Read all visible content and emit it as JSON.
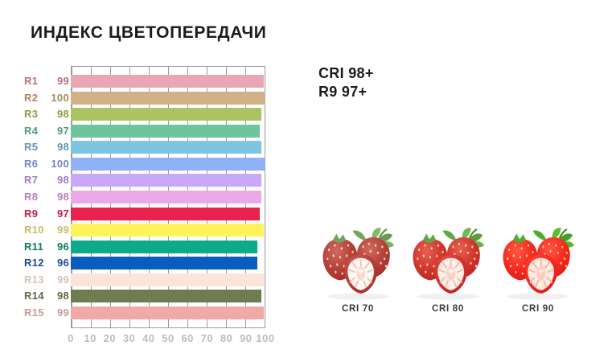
{
  "title": "ИНДЕКС ЦВЕТОПЕРЕДАЧИ",
  "summary": {
    "cri": "CRI 98+",
    "r9": "R9 97+"
  },
  "colors": {
    "grid": "#9b9b9b",
    "axis_ticks": "#bcbcbc",
    "title_ink": "#1b1b1b"
  },
  "chart_data": {
    "type": "bar",
    "orientation": "horizontal",
    "xlim": [
      0,
      100
    ],
    "x_ticks": [
      0,
      10,
      20,
      30,
      40,
      50,
      60,
      70,
      80,
      90,
      100
    ],
    "grid": true,
    "rows": [
      {
        "name": "R1",
        "value": 99,
        "bar_color": "#eba6b3",
        "label_color": "#b4717f"
      },
      {
        "name": "R2",
        "value": 100,
        "bar_color": "#d2b186",
        "label_color": "#a8885c"
      },
      {
        "name": "R3",
        "value": 98,
        "bar_color": "#abc362",
        "label_color": "#8e9c43"
      },
      {
        "name": "R4",
        "value": 97,
        "bar_color": "#6fc49e",
        "label_color": "#4f9b7c"
      },
      {
        "name": "R5",
        "value": 98,
        "bar_color": "#7ec5e1",
        "label_color": "#6295ae"
      },
      {
        "name": "R6",
        "value": 100,
        "bar_color": "#90b1f8",
        "label_color": "#7284c6"
      },
      {
        "name": "R7",
        "value": 98,
        "bar_color": "#c9a8f5",
        "label_color": "#9d7cca"
      },
      {
        "name": "R8",
        "value": 98,
        "bar_color": "#eda8e8",
        "label_color": "#c07dbb"
      },
      {
        "name": "R9",
        "value": 97,
        "bar_color": "#e9214e",
        "label_color": "#c22045"
      },
      {
        "name": "R10",
        "value": 99,
        "bar_color": "#fdf35b",
        "label_color": "#c9bd62"
      },
      {
        "name": "R11",
        "value": 96,
        "bar_color": "#0bab88",
        "label_color": "#117a5e"
      },
      {
        "name": "R12",
        "value": 96,
        "bar_color": "#0a5dbf",
        "label_color": "#1c4b9b"
      },
      {
        "name": "R13",
        "value": 99,
        "bar_color": "#fce5d8",
        "label_color": "#d5c3b8"
      },
      {
        "name": "R14",
        "value": 98,
        "bar_color": "#6e7d50",
        "label_color": "#5c6b40"
      },
      {
        "name": "R15",
        "value": 99,
        "bar_color": "#f0a9a5",
        "label_color": "#c69d99"
      }
    ]
  },
  "comparison": {
    "items": [
      {
        "label": "CRI 70",
        "image": "strawberries",
        "filter": "saturate(0.6) brightness(1.05)"
      },
      {
        "label": "CRI 80",
        "image": "strawberries",
        "filter": "saturate(0.82) brightness(1.02)"
      },
      {
        "label": "CRI 90",
        "image": "strawberries",
        "filter": "saturate(1.1)"
      }
    ]
  }
}
